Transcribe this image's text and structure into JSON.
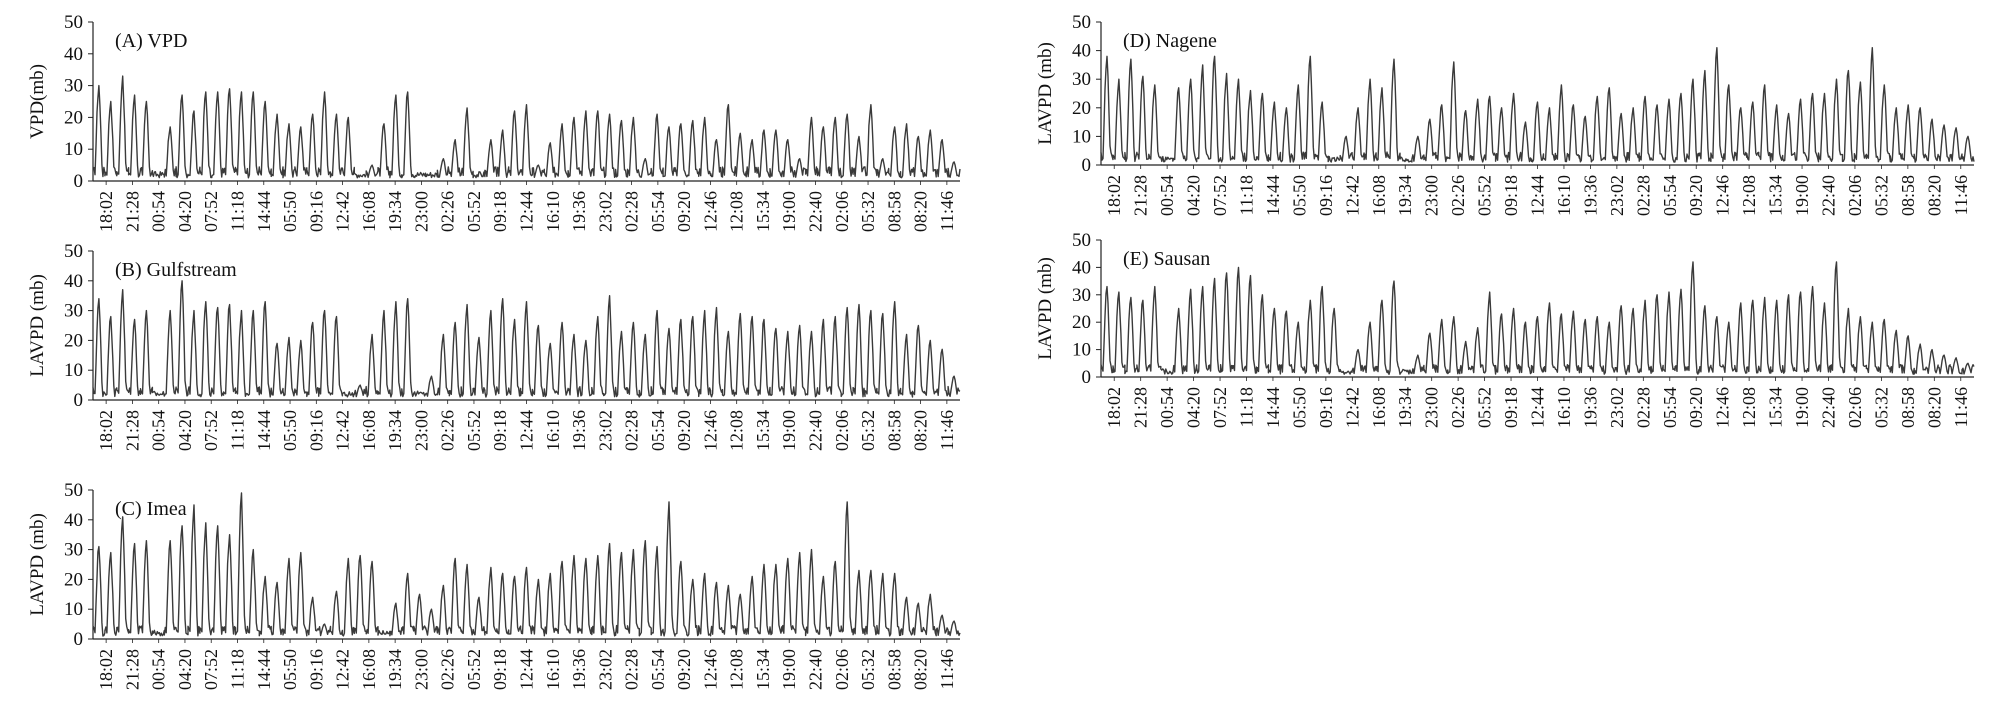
{
  "style": {
    "line_color": "#3a3a3a",
    "axis_color": "#222222",
    "background": "#ffffff"
  },
  "time_ticks": [
    "18:02",
    "21:28",
    "00:54",
    "04:20",
    "07:52",
    "11:18",
    "14:44",
    "05:50",
    "09:16",
    "12:42",
    "16:08",
    "19:34",
    "23:00",
    "02:26",
    "05:52",
    "09:18",
    "12:44",
    "16:10",
    "19:36",
    "23:02",
    "02:28",
    "05:54",
    "09:20",
    "12:46",
    "12:08",
    "15:34",
    "19:00",
    "22:40",
    "02:06",
    "05:32",
    "08:58",
    "08:20",
    "11:46"
  ],
  "chart_data": [
    {
      "id": "A",
      "type": "line",
      "title": "(A) VPD",
      "xlabel": "",
      "ylabel": "VPD(mb)",
      "ylim": [
        0,
        50
      ],
      "yticks": [
        0,
        10,
        20,
        30,
        40,
        50
      ],
      "grid": false,
      "legend": "none",
      "series": [
        {
          "day_peaks": [
            30,
            25,
            33,
            27,
            25,
            0,
            17,
            27,
            22,
            28,
            28,
            29,
            28,
            28,
            25,
            21,
            18,
            17,
            21,
            28,
            21,
            20,
            0,
            5,
            18,
            27,
            28,
            0,
            0,
            7,
            13,
            23,
            0,
            13,
            16,
            22,
            24,
            5,
            12,
            18,
            20,
            22,
            22,
            21,
            19,
            20,
            7,
            21,
            17,
            18,
            19,
            20,
            13,
            24,
            15,
            13,
            16,
            16,
            13,
            7,
            20,
            17,
            20,
            21,
            14,
            24,
            7,
            17,
            18,
            14,
            16,
            13,
            6
          ],
          "min_value": 1
        }
      ]
    },
    {
      "id": "B",
      "type": "line",
      "title": "(B) Gulfstream",
      "xlabel": "",
      "ylabel": "LAVPD (mb)",
      "ylim": [
        0,
        50
      ],
      "yticks": [
        0,
        10,
        20,
        30,
        40,
        50
      ],
      "grid": false,
      "legend": "none",
      "series": [
        {
          "day_peaks": [
            34,
            28,
            37,
            27,
            30,
            0,
            30,
            40,
            30,
            33,
            31,
            32,
            30,
            30,
            33,
            19,
            21,
            20,
            26,
            30,
            28,
            0,
            5,
            22,
            30,
            33,
            34,
            0,
            8,
            22,
            26,
            32,
            21,
            30,
            34,
            27,
            33,
            25,
            19,
            26,
            22,
            20,
            28,
            35,
            23,
            26,
            22,
            30,
            24,
            27,
            28,
            30,
            31,
            23,
            29,
            28,
            27,
            24,
            23,
            25,
            23,
            27,
            28,
            31,
            32,
            30,
            29,
            33,
            22,
            25,
            20,
            17,
            8
          ],
          "min_value": 1
        }
      ]
    },
    {
      "id": "C",
      "type": "line",
      "title": "(C) Imea",
      "xlabel": "",
      "ylabel": "LAVPD (mb)",
      "ylim": [
        0,
        50
      ],
      "yticks": [
        0,
        10,
        20,
        30,
        40,
        50
      ],
      "grid": false,
      "legend": "none",
      "series": [
        {
          "day_peaks": [
            31,
            29,
            41,
            32,
            33,
            0,
            33,
            38,
            45,
            39,
            38,
            35,
            49,
            30,
            21,
            19,
            27,
            29,
            14,
            5,
            16,
            27,
            28,
            26,
            0,
            12,
            22,
            15,
            10,
            18,
            27,
            25,
            14,
            24,
            22,
            21,
            24,
            20,
            22,
            26,
            28,
            27,
            28,
            32,
            29,
            30,
            33,
            31,
            46,
            26,
            20,
            22,
            19,
            18,
            15,
            21,
            25,
            25,
            27,
            29,
            30,
            21,
            26,
            46,
            23,
            23,
            22,
            22,
            14,
            12,
            15,
            8,
            6
          ],
          "min_value": 1
        }
      ]
    },
    {
      "id": "D",
      "type": "line",
      "title": "(D) Nagene",
      "xlabel": "",
      "ylabel": "LAVPD (mb)",
      "ylim": [
        0,
        50
      ],
      "yticks": [
        0,
        10,
        20,
        30,
        40,
        50
      ],
      "grid": false,
      "legend": "none",
      "series": [
        {
          "day_peaks": [
            38,
            30,
            37,
            31,
            28,
            0,
            27,
            30,
            35,
            38,
            32,
            30,
            26,
            25,
            22,
            20,
            28,
            38,
            22,
            0,
            10,
            20,
            30,
            27,
            37,
            0,
            10,
            16,
            21,
            36,
            19,
            23,
            24,
            20,
            25,
            15,
            22,
            20,
            28,
            21,
            17,
            24,
            27,
            18,
            20,
            24,
            21,
            23,
            25,
            30,
            33,
            41,
            28,
            20,
            22,
            28,
            21,
            18,
            23,
            25,
            25,
            30,
            33,
            29,
            41,
            28,
            20,
            21,
            20,
            16,
            14,
            13,
            10
          ],
          "min_value": 1
        }
      ]
    },
    {
      "id": "E",
      "type": "line",
      "title": "(E) Sausan",
      "xlabel": "",
      "ylabel": "LAVPD (mb)",
      "ylim": [
        0,
        50
      ],
      "yticks": [
        0,
        10,
        20,
        30,
        40,
        50
      ],
      "grid": false,
      "legend": "none",
      "series": [
        {
          "day_peaks": [
            33,
            31,
            29,
            28,
            33,
            0,
            25,
            32,
            33,
            36,
            38,
            40,
            37,
            30,
            25,
            24,
            20,
            28,
            33,
            25,
            0,
            10,
            20,
            28,
            35,
            0,
            8,
            16,
            21,
            22,
            13,
            18,
            31,
            23,
            25,
            20,
            22,
            27,
            23,
            24,
            21,
            22,
            20,
            26,
            25,
            28,
            30,
            31,
            32,
            42,
            26,
            22,
            20,
            27,
            28,
            29,
            28,
            30,
            31,
            33,
            27,
            42,
            25,
            22,
            20,
            21,
            17,
            15,
            12,
            10,
            8,
            7,
            5
          ],
          "min_value": 1
        }
      ]
    }
  ]
}
